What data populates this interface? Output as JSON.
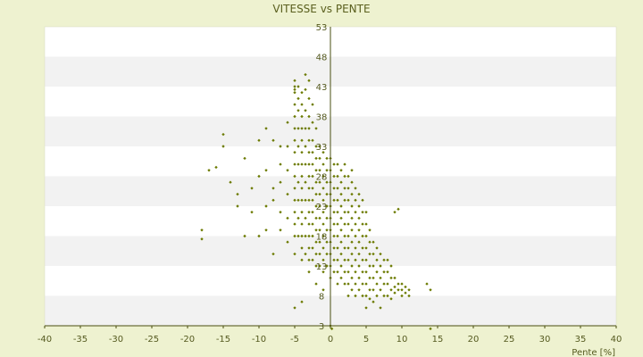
{
  "chart_data": {
    "type": "scatter",
    "title": "VITESSE vs PENTE",
    "xlabel": "Pente [%]",
    "ylabel": "",
    "xlim": [
      -40,
      40
    ],
    "ylim": [
      3,
      53
    ],
    "x_ticks": [
      "-40",
      "-35",
      "-30",
      "-25",
      "-20",
      "-15",
      "-10",
      "-5",
      "0",
      "5",
      "10",
      "15",
      "20",
      "25",
      "30",
      "35",
      "40"
    ],
    "y_ticks": [
      "3",
      "8",
      "13",
      "18",
      "23",
      "28",
      "33",
      "38",
      "43",
      "48",
      "53"
    ],
    "grid": "horizontal alternating bands",
    "legend": "none",
    "colors": {
      "background": "#eef2d0",
      "band_light": "#ffffff",
      "band_dark": "#f2f2f2",
      "marker": "#6b7a00",
      "axis": "#4a4f10"
    },
    "series": [
      {
        "points": [
          [
            -18,
            19
          ],
          [
            -18,
            17.5
          ],
          [
            -17,
            29
          ],
          [
            -16,
            29.5
          ],
          [
            -15,
            33
          ],
          [
            -15,
            35
          ],
          [
            -14,
            27
          ],
          [
            -13,
            25
          ],
          [
            -13,
            23
          ],
          [
            -12,
            31
          ],
          [
            -12,
            18
          ],
          [
            -11,
            26
          ],
          [
            -11,
            22
          ],
          [
            -10,
            34
          ],
          [
            -10,
            28
          ],
          [
            -10,
            18
          ],
          [
            -9,
            36
          ],
          [
            -9,
            29
          ],
          [
            -9,
            23
          ],
          [
            -9,
            19
          ],
          [
            -8,
            34
          ],
          [
            -8,
            26
          ],
          [
            -8,
            24
          ],
          [
            -8,
            15
          ],
          [
            -7,
            33
          ],
          [
            -7,
            30
          ],
          [
            -7,
            27
          ],
          [
            -7,
            22
          ],
          [
            -7,
            19
          ],
          [
            -6,
            37
          ],
          [
            -6,
            33
          ],
          [
            -6,
            29
          ],
          [
            -6,
            25
          ],
          [
            -6,
            21
          ],
          [
            -6,
            17
          ],
          [
            -5,
            44
          ],
          [
            -5,
            43
          ],
          [
            -5,
            42.5
          ],
          [
            -5,
            42
          ],
          [
            -5,
            40
          ],
          [
            -5,
            38
          ],
          [
            -5,
            36
          ],
          [
            -5,
            34
          ],
          [
            -5,
            32
          ],
          [
            -5,
            30
          ],
          [
            -5,
            28
          ],
          [
            -5,
            26
          ],
          [
            -5,
            24
          ],
          [
            -5,
            22
          ],
          [
            -5,
            20
          ],
          [
            -5,
            18
          ],
          [
            -5,
            15
          ],
          [
            -5,
            6
          ],
          [
            -4.5,
            43
          ],
          [
            -4.5,
            41
          ],
          [
            -4.5,
            39
          ],
          [
            -4.5,
            36
          ],
          [
            -4.5,
            33
          ],
          [
            -4.5,
            30
          ],
          [
            -4.5,
            27
          ],
          [
            -4.5,
            24
          ],
          [
            -4.5,
            21
          ],
          [
            -4.5,
            18
          ],
          [
            -4,
            42
          ],
          [
            -4,
            40
          ],
          [
            -4,
            38
          ],
          [
            -4,
            36
          ],
          [
            -4,
            34
          ],
          [
            -4,
            32
          ],
          [
            -4,
            30
          ],
          [
            -4,
            28
          ],
          [
            -4,
            26
          ],
          [
            -4,
            24
          ],
          [
            -4,
            22
          ],
          [
            -4,
            20
          ],
          [
            -4,
            18
          ],
          [
            -4,
            16
          ],
          [
            -4,
            14
          ],
          [
            -4,
            7
          ],
          [
            -3.5,
            45
          ],
          [
            -3.5,
            42.5
          ],
          [
            -3.5,
            39
          ],
          [
            -3.5,
            36
          ],
          [
            -3.5,
            33
          ],
          [
            -3.5,
            30
          ],
          [
            -3.5,
            27
          ],
          [
            -3.5,
            24
          ],
          [
            -3.5,
            21
          ],
          [
            -3.5,
            18
          ],
          [
            -3.5,
            15
          ],
          [
            -3,
            44
          ],
          [
            -3,
            41
          ],
          [
            -3,
            38
          ],
          [
            -3,
            36
          ],
          [
            -3,
            34
          ],
          [
            -3,
            32
          ],
          [
            -3,
            30
          ],
          [
            -3,
            28
          ],
          [
            -3,
            26
          ],
          [
            -3,
            24
          ],
          [
            -3,
            22
          ],
          [
            -3,
            20
          ],
          [
            -3,
            18
          ],
          [
            -3,
            16
          ],
          [
            -3,
            14
          ],
          [
            -3,
            12
          ],
          [
            -2.5,
            40
          ],
          [
            -2.5,
            37
          ],
          [
            -2.5,
            34
          ],
          [
            -2.5,
            32
          ],
          [
            -2.5,
            30
          ],
          [
            -2.5,
            28
          ],
          [
            -2.5,
            26
          ],
          [
            -2.5,
            24
          ],
          [
            -2.5,
            22
          ],
          [
            -2.5,
            20
          ],
          [
            -2.5,
            18
          ],
          [
            -2.5,
            16
          ],
          [
            -2.5,
            14
          ],
          [
            -2,
            36
          ],
          [
            -2,
            33
          ],
          [
            -2,
            31
          ],
          [
            -2,
            29
          ],
          [
            -2,
            27
          ],
          [
            -2,
            25
          ],
          [
            -2,
            23
          ],
          [
            -2,
            21
          ],
          [
            -2,
            19
          ],
          [
            -2,
            17
          ],
          [
            -2,
            15
          ],
          [
            -2,
            13
          ],
          [
            -2,
            10
          ],
          [
            -1.5,
            33
          ],
          [
            -1.5,
            31
          ],
          [
            -1.5,
            29
          ],
          [
            -1.5,
            27
          ],
          [
            -1.5,
            25
          ],
          [
            -1.5,
            23
          ],
          [
            -1.5,
            21
          ],
          [
            -1.5,
            19
          ],
          [
            -1.5,
            17
          ],
          [
            -1.5,
            15
          ],
          [
            -1.5,
            13
          ],
          [
            -1,
            32
          ],
          [
            -1,
            30
          ],
          [
            -1,
            28
          ],
          [
            -1,
            26
          ],
          [
            -1,
            24
          ],
          [
            -1,
            22
          ],
          [
            -1,
            20
          ],
          [
            -1,
            18
          ],
          [
            -1,
            16
          ],
          [
            -1,
            14
          ],
          [
            -1,
            12
          ],
          [
            -1,
            9
          ],
          [
            -0.5,
            31
          ],
          [
            -0.5,
            29
          ],
          [
            -0.5,
            27
          ],
          [
            -0.5,
            25
          ],
          [
            -0.5,
            23
          ],
          [
            -0.5,
            21
          ],
          [
            -0.5,
            19
          ],
          [
            -0.5,
            17
          ],
          [
            -0.5,
            15
          ],
          [
            -0.5,
            13
          ],
          [
            0,
            31
          ],
          [
            0,
            29
          ],
          [
            0,
            27
          ],
          [
            0,
            25
          ],
          [
            0,
            23
          ],
          [
            0,
            21
          ],
          [
            0,
            19
          ],
          [
            0,
            17
          ],
          [
            0,
            15
          ],
          [
            0,
            13
          ],
          [
            0,
            11
          ],
          [
            0,
            3
          ],
          [
            0.2,
            2.5
          ],
          [
            0.5,
            30
          ],
          [
            0.5,
            28
          ],
          [
            0.5,
            26
          ],
          [
            0.5,
            24
          ],
          [
            0.5,
            22
          ],
          [
            0.5,
            20
          ],
          [
            0.5,
            18
          ],
          [
            0.5,
            16
          ],
          [
            0.5,
            14
          ],
          [
            0.5,
            12
          ],
          [
            1,
            30
          ],
          [
            1,
            28
          ],
          [
            1,
            26
          ],
          [
            1,
            24
          ],
          [
            1,
            22
          ],
          [
            1,
            20
          ],
          [
            1,
            18
          ],
          [
            1,
            16
          ],
          [
            1,
            14
          ],
          [
            1,
            12
          ],
          [
            1,
            10
          ],
          [
            1.5,
            29
          ],
          [
            1.5,
            27
          ],
          [
            1.5,
            25
          ],
          [
            1.5,
            23
          ],
          [
            1.5,
            21
          ],
          [
            1.5,
            19
          ],
          [
            1.5,
            17
          ],
          [
            1.5,
            15
          ],
          [
            1.5,
            13
          ],
          [
            1.5,
            11
          ],
          [
            2,
            30
          ],
          [
            2,
            28
          ],
          [
            2,
            26
          ],
          [
            2,
            24
          ],
          [
            2,
            22
          ],
          [
            2,
            20
          ],
          [
            2,
            18
          ],
          [
            2,
            16
          ],
          [
            2,
            14
          ],
          [
            2,
            12
          ],
          [
            2,
            10
          ],
          [
            2.5,
            28
          ],
          [
            2.5,
            26
          ],
          [
            2.5,
            24
          ],
          [
            2.5,
            22
          ],
          [
            2.5,
            20
          ],
          [
            2.5,
            18
          ],
          [
            2.5,
            16
          ],
          [
            2.5,
            14
          ],
          [
            2.5,
            12
          ],
          [
            2.5,
            10
          ],
          [
            2.5,
            8
          ],
          [
            3,
            29
          ],
          [
            3,
            27
          ],
          [
            3,
            25
          ],
          [
            3,
            23
          ],
          [
            3,
            21
          ],
          [
            3,
            19
          ],
          [
            3,
            17
          ],
          [
            3,
            15
          ],
          [
            3,
            13
          ],
          [
            3,
            11
          ],
          [
            3,
            9
          ],
          [
            3.5,
            26
          ],
          [
            3.5,
            24
          ],
          [
            3.5,
            22
          ],
          [
            3.5,
            20
          ],
          [
            3.5,
            18
          ],
          [
            3.5,
            16
          ],
          [
            3.5,
            14
          ],
          [
            3.5,
            12
          ],
          [
            3.5,
            10
          ],
          [
            3.5,
            8
          ],
          [
            4,
            25
          ],
          [
            4,
            23
          ],
          [
            4,
            21
          ],
          [
            4,
            19
          ],
          [
            4,
            17
          ],
          [
            4,
            15
          ],
          [
            4,
            13
          ],
          [
            4,
            11
          ],
          [
            4,
            9
          ],
          [
            4.5,
            24
          ],
          [
            4.5,
            22
          ],
          [
            4.5,
            20
          ],
          [
            4.5,
            18
          ],
          [
            4.5,
            16
          ],
          [
            4.5,
            14
          ],
          [
            4.5,
            12
          ],
          [
            4.5,
            10
          ],
          [
            4.5,
            8
          ],
          [
            5,
            22
          ],
          [
            5,
            20
          ],
          [
            5,
            18
          ],
          [
            5,
            16
          ],
          [
            5,
            14
          ],
          [
            5,
            12
          ],
          [
            5,
            10
          ],
          [
            5,
            8
          ],
          [
            5,
            6
          ],
          [
            5.5,
            19
          ],
          [
            5.5,
            17
          ],
          [
            5.5,
            15
          ],
          [
            5.5,
            13
          ],
          [
            5.5,
            11
          ],
          [
            5.5,
            9
          ],
          [
            5.5,
            7.5
          ],
          [
            6,
            17
          ],
          [
            6,
            15
          ],
          [
            6,
            13
          ],
          [
            6,
            11
          ],
          [
            6,
            9
          ],
          [
            6,
            7
          ],
          [
            6.5,
            16
          ],
          [
            6.5,
            14
          ],
          [
            6.5,
            12
          ],
          [
            6.5,
            10
          ],
          [
            6.5,
            8
          ],
          [
            7,
            15
          ],
          [
            7,
            13
          ],
          [
            7,
            11
          ],
          [
            7,
            9
          ],
          [
            7,
            6
          ],
          [
            7.5,
            14
          ],
          [
            7.5,
            12
          ],
          [
            7.5,
            10
          ],
          [
            7.5,
            8
          ],
          [
            8,
            14
          ],
          [
            8,
            12
          ],
          [
            8,
            10
          ],
          [
            8,
            8
          ],
          [
            8.5,
            13
          ],
          [
            8.5,
            11
          ],
          [
            8.5,
            9
          ],
          [
            8.5,
            7.5
          ],
          [
            9,
            22
          ],
          [
            9,
            11
          ],
          [
            9,
            9.5
          ],
          [
            9,
            8.5
          ],
          [
            9.5,
            22.5
          ],
          [
            9.5,
            10
          ],
          [
            9.5,
            9
          ],
          [
            10,
            10
          ],
          [
            10,
            9
          ],
          [
            10,
            8
          ],
          [
            10.5,
            9.5
          ],
          [
            10.5,
            8.5
          ],
          [
            11,
            9
          ],
          [
            11,
            8
          ],
          [
            13.5,
            10
          ],
          [
            14,
            9
          ],
          [
            14,
            2.5
          ]
        ]
      }
    ]
  }
}
